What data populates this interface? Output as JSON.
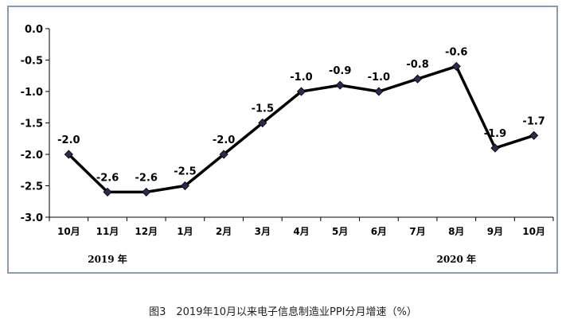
{
  "caption": "图3　2019年10月以来电子信息制造业PPI分月增速（%）",
  "chart_data": {
    "type": "line",
    "categories": [
      "10月",
      "11月",
      "12月",
      "1月",
      "2月",
      "3月",
      "4月",
      "5月",
      "6月",
      "7月",
      "8月",
      "9月",
      "10月"
    ],
    "values": [
      -2.0,
      -2.6,
      -2.6,
      -2.5,
      -2.0,
      -1.5,
      -1.0,
      -0.9,
      -1.0,
      -0.8,
      -0.6,
      -1.9,
      -1.7
    ],
    "data_labels": [
      "-2.0",
      "-2.6",
      "-2.6",
      "-2.5",
      "-2.0",
      "-1.5",
      "-1.0",
      "-0.9",
      "-1.0",
      "-0.8",
      "-0.6",
      "-1.9",
      "-1.7"
    ],
    "yticks": [
      "0.0",
      "-0.5",
      "-1.0",
      "-1.5",
      "-2.0",
      "-2.5",
      "-3.0"
    ],
    "ytick_values": [
      0.0,
      -0.5,
      -1.0,
      -1.5,
      -2.0,
      -2.5,
      -3.0
    ],
    "ylim": [
      -3.0,
      0.0
    ],
    "year_labels": [
      {
        "text": "2019 年",
        "category_index": 1.5
      },
      {
        "text": "2020 年",
        "category_index": 10.5
      }
    ],
    "title": "",
    "xlabel": "",
    "ylabel": "",
    "grid": false,
    "line_color": "#000000",
    "marker_color": "#2e2a4a"
  }
}
